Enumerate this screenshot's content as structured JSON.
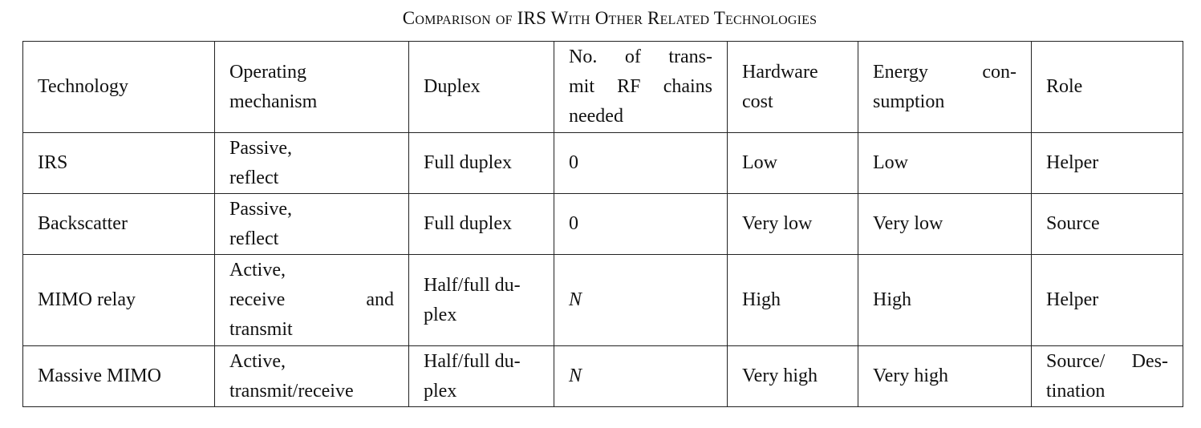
{
  "caption": "Comparison of IRS With Other Related Technologies",
  "headers": {
    "technology": "Technology",
    "mechanism": [
      "Operating",
      "mechanism"
    ],
    "duplex": "Duplex",
    "rf": [
      "No. of trans-",
      "mit RF chains",
      "needed"
    ],
    "hardware": [
      "Hardware",
      "cost"
    ],
    "energy": [
      "Energy con-",
      "sumption"
    ],
    "role": "Role"
  },
  "rows": [
    {
      "technology": "IRS",
      "mechanism": [
        "Passive,",
        "reflect"
      ],
      "duplex": [
        "Full duplex"
      ],
      "rf": "0",
      "hardware": "Low",
      "energy": "Low",
      "role": [
        "Helper"
      ]
    },
    {
      "technology": "Backscatter",
      "mechanism": [
        "Passive,",
        "reflect"
      ],
      "duplex": [
        "Full duplex"
      ],
      "rf": "0",
      "hardware": "Very low",
      "energy": "Very low",
      "role": [
        "Source"
      ]
    },
    {
      "technology": "MIMO relay",
      "mechanism": [
        "Active,",
        "receive and",
        "transmit"
      ],
      "duplex": [
        "Half/full du-",
        "plex"
      ],
      "rf": "N",
      "hardware": "High",
      "energy": "High",
      "role": [
        "Helper"
      ]
    },
    {
      "technology": "Massive MIMO",
      "mechanism": [
        "Active,",
        "transmit/receive"
      ],
      "duplex": [
        "Half/full du-",
        "plex"
      ],
      "rf": "N",
      "hardware": "Very high",
      "energy": "Very high",
      "role": [
        "Source/ Des-",
        "tination"
      ]
    }
  ]
}
